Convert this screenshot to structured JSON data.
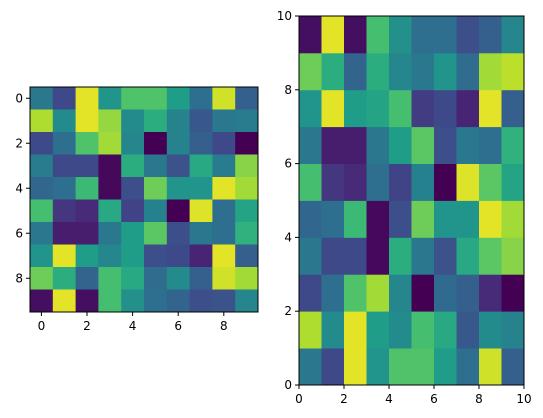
{
  "chart_data": [
    {
      "type": "heatmap",
      "colormap": "viridis",
      "origin": "upper",
      "value_range": [
        0,
        1
      ],
      "xlim": [
        -0.5,
        9.5
      ],
      "ylim": [
        9.5,
        -0.5
      ],
      "xticks": [
        0,
        2,
        4,
        6,
        8
      ],
      "yticks": [
        0,
        2,
        4,
        6,
        8
      ],
      "xtick_labels": [
        "0",
        "2",
        "4",
        "6",
        "8"
      ],
      "ytick_labels": [
        "0",
        "2",
        "4",
        "6",
        "8"
      ],
      "grid": false,
      "values": [
        [
          0.4,
          0.22,
          0.96,
          0.52,
          0.72,
          0.72,
          0.55,
          0.36,
          0.93,
          0.3
        ],
        [
          0.88,
          0.48,
          0.96,
          0.84,
          0.48,
          0.62,
          0.45,
          0.27,
          0.4,
          0.42
        ],
        [
          0.22,
          0.36,
          0.72,
          0.86,
          0.46,
          0.0,
          0.45,
          0.3,
          0.22,
          0.0
        ],
        [
          0.42,
          0.22,
          0.22,
          0.02,
          0.62,
          0.4,
          0.25,
          0.6,
          0.42,
          0.82
        ],
        [
          0.33,
          0.36,
          0.68,
          0.02,
          0.24,
          0.78,
          0.52,
          0.52,
          0.96,
          0.86
        ],
        [
          0.7,
          0.16,
          0.12,
          0.6,
          0.2,
          0.44,
          0.0,
          0.95,
          0.36,
          0.58
        ],
        [
          0.4,
          0.08,
          0.08,
          0.4,
          0.55,
          0.74,
          0.24,
          0.4,
          0.36,
          0.64
        ],
        [
          0.52,
          0.96,
          0.55,
          0.46,
          0.55,
          0.24,
          0.22,
          0.1,
          0.96,
          0.3
        ],
        [
          0.78,
          0.62,
          0.32,
          0.7,
          0.6,
          0.35,
          0.48,
          0.3,
          0.93,
          0.86
        ],
        [
          0.04,
          0.96,
          0.04,
          0.7,
          0.5,
          0.36,
          0.32,
          0.24,
          0.26,
          0.46
        ]
      ]
    },
    {
      "type": "heatmap",
      "colormap": "viridis",
      "origin": "lower",
      "value_range": [
        0,
        1
      ],
      "xlim": [
        0,
        10
      ],
      "ylim": [
        0,
        10
      ],
      "xticks": [
        0,
        2,
        4,
        6,
        8,
        10
      ],
      "yticks": [
        0,
        2,
        4,
        6,
        8,
        10
      ],
      "xtick_labels": [
        "0",
        "2",
        "4",
        "6",
        "8",
        "10"
      ],
      "ytick_labels": [
        "0",
        "2",
        "4",
        "6",
        "8",
        "10"
      ],
      "grid": false,
      "values": [
        [
          0.4,
          0.22,
          0.96,
          0.52,
          0.72,
          0.72,
          0.55,
          0.36,
          0.93,
          0.3
        ],
        [
          0.88,
          0.48,
          0.96,
          0.55,
          0.48,
          0.7,
          0.6,
          0.27,
          0.48,
          0.45
        ],
        [
          0.22,
          0.36,
          0.72,
          0.86,
          0.46,
          0.0,
          0.34,
          0.3,
          0.12,
          0.0
        ],
        [
          0.4,
          0.22,
          0.22,
          0.02,
          0.62,
          0.4,
          0.25,
          0.6,
          0.74,
          0.82
        ],
        [
          0.33,
          0.36,
          0.68,
          0.02,
          0.24,
          0.78,
          0.52,
          0.52,
          0.96,
          0.86
        ],
        [
          0.7,
          0.16,
          0.12,
          0.36,
          0.2,
          0.44,
          0.0,
          0.95,
          0.74,
          0.58
        ],
        [
          0.4,
          0.08,
          0.08,
          0.4,
          0.55,
          0.74,
          0.24,
          0.4,
          0.36,
          0.64
        ],
        [
          0.52,
          0.96,
          0.55,
          0.58,
          0.7,
          0.18,
          0.22,
          0.1,
          0.96,
          0.3
        ],
        [
          0.78,
          0.62,
          0.32,
          0.62,
          0.46,
          0.4,
          0.52,
          0.35,
          0.86,
          0.9
        ],
        [
          0.04,
          0.96,
          0.04,
          0.7,
          0.5,
          0.36,
          0.36,
          0.24,
          0.3,
          0.46
        ]
      ]
    }
  ]
}
